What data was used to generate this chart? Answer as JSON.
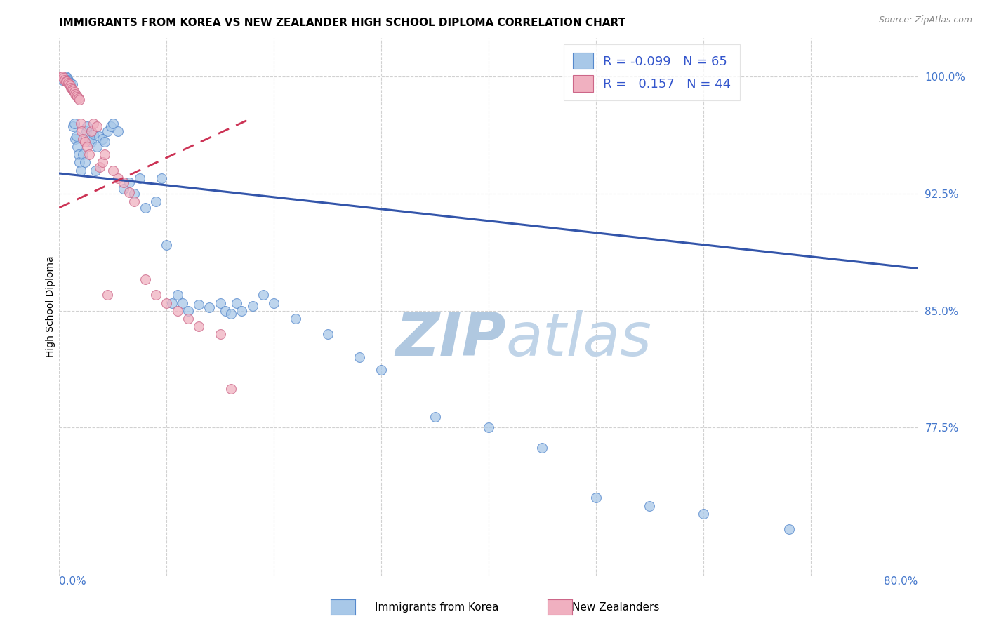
{
  "title": "IMMIGRANTS FROM KOREA VS NEW ZEALANDER HIGH SCHOOL DIPLOMA CORRELATION CHART",
  "source": "Source: ZipAtlas.com",
  "ylabel": "High School Diploma",
  "legend_blue_r": "-0.099",
  "legend_blue_n": "65",
  "legend_pink_r": "0.157",
  "legend_pink_n": "44",
  "blue_fill": "#a8c8e8",
  "blue_edge": "#5588cc",
  "pink_fill": "#f0b0c0",
  "pink_edge": "#cc6688",
  "blue_line_color": "#3355aa",
  "pink_line_color": "#cc3355",
  "legend_r_color": "#cc2244",
  "legend_n_color": "#3355cc",
  "ytick_color": "#4477cc",
  "xtick_color": "#4477cc",
  "watermark_zip_color": "#b0c8e0",
  "watermark_atlas_color": "#c0d4e8",
  "xlim": [
    0.0,
    0.8
  ],
  "ylim": [
    0.68,
    1.025
  ],
  "ytick_values": [
    0.775,
    0.85,
    0.925,
    1.0
  ],
  "ytick_labels": [
    "77.5%",
    "85.0%",
    "92.5%",
    "100.0%"
  ],
  "xtick_values": [
    0.0,
    0.1,
    0.2,
    0.3,
    0.4,
    0.5,
    0.6,
    0.7,
    0.8
  ],
  "blue_trend_x": [
    0.0,
    0.8
  ],
  "blue_trend_y": [
    0.938,
    0.877
  ],
  "pink_trend_x": [
    0.0,
    0.175
  ],
  "pink_trend_y": [
    0.916,
    0.972
  ],
  "blue_x": [
    0.003,
    0.005,
    0.006,
    0.007,
    0.008,
    0.009,
    0.01,
    0.012,
    0.013,
    0.014,
    0.015,
    0.016,
    0.017,
    0.018,
    0.019,
    0.02,
    0.022,
    0.024,
    0.025,
    0.026,
    0.028,
    0.03,
    0.032,
    0.034,
    0.035,
    0.037,
    0.04,
    0.042,
    0.045,
    0.048,
    0.05,
    0.055,
    0.06,
    0.065,
    0.07,
    0.075,
    0.08,
    0.09,
    0.095,
    0.1,
    0.105,
    0.11,
    0.115,
    0.12,
    0.13,
    0.14,
    0.15,
    0.155,
    0.16,
    0.165,
    0.17,
    0.18,
    0.19,
    0.2,
    0.22,
    0.25,
    0.28,
    0.3,
    0.35,
    0.4,
    0.45,
    0.5,
    0.55,
    0.6,
    0.68
  ],
  "blue_y": [
    0.998,
    1.0,
    1.0,
    0.999,
    0.998,
    0.997,
    0.996,
    0.995,
    0.968,
    0.97,
    0.96,
    0.962,
    0.955,
    0.95,
    0.945,
    0.94,
    0.95,
    0.945,
    0.965,
    0.968,
    0.96,
    0.958,
    0.963,
    0.94,
    0.955,
    0.962,
    0.96,
    0.958,
    0.965,
    0.968,
    0.97,
    0.965,
    0.928,
    0.932,
    0.925,
    0.935,
    0.916,
    0.92,
    0.935,
    0.892,
    0.855,
    0.86,
    0.855,
    0.85,
    0.854,
    0.852,
    0.855,
    0.85,
    0.848,
    0.855,
    0.85,
    0.853,
    0.86,
    0.855,
    0.845,
    0.835,
    0.82,
    0.812,
    0.782,
    0.775,
    0.762,
    0.73,
    0.725,
    0.72,
    0.71
  ],
  "pink_x": [
    0.002,
    0.003,
    0.004,
    0.005,
    0.006,
    0.007,
    0.008,
    0.009,
    0.01,
    0.011,
    0.012,
    0.013,
    0.014,
    0.015,
    0.016,
    0.017,
    0.018,
    0.019,
    0.02,
    0.021,
    0.022,
    0.024,
    0.026,
    0.028,
    0.03,
    0.032,
    0.035,
    0.038,
    0.04,
    0.042,
    0.045,
    0.05,
    0.055,
    0.06,
    0.065,
    0.07,
    0.08,
    0.09,
    0.1,
    0.11,
    0.12,
    0.13,
    0.15,
    0.16
  ],
  "pink_y": [
    1.0,
    1.0,
    0.999,
    0.998,
    0.997,
    0.997,
    0.996,
    0.995,
    0.994,
    0.993,
    0.992,
    0.991,
    0.99,
    0.989,
    0.988,
    0.987,
    0.986,
    0.985,
    0.97,
    0.965,
    0.96,
    0.958,
    0.955,
    0.95,
    0.965,
    0.97,
    0.968,
    0.942,
    0.945,
    0.95,
    0.86,
    0.94,
    0.935,
    0.932,
    0.926,
    0.92,
    0.87,
    0.86,
    0.855,
    0.85,
    0.845,
    0.84,
    0.835,
    0.8
  ]
}
